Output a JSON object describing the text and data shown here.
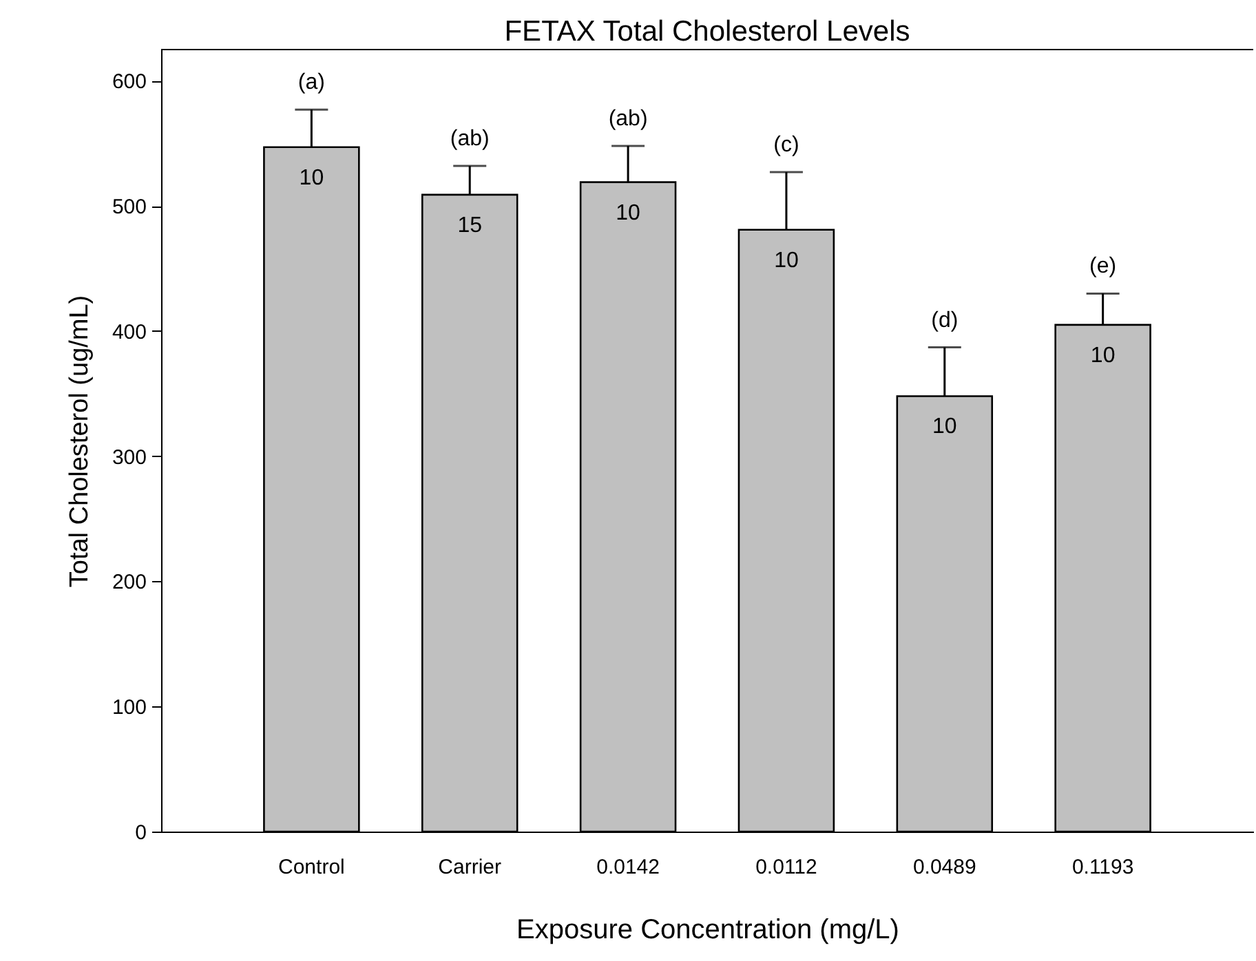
{
  "chart_data": {
    "type": "bar",
    "title": "FETAX Total Cholesterol Levels",
    "xlabel": "Exposure Concentration (mg/L)",
    "ylabel": "Total Cholesterol (ug/mL)",
    "categories": [
      "Control",
      "Carrier",
      "0.0142",
      "0.0112",
      "0.0489",
      "0.1193"
    ],
    "values": [
      547,
      509,
      519,
      481,
      348,
      405
    ],
    "errors": [
      [
        547,
        577
      ],
      [
        509,
        532
      ],
      [
        519,
        548
      ],
      [
        481,
        527
      ],
      [
        348,
        387
      ],
      [
        405,
        430
      ]
    ],
    "color": "#c0c0c0",
    "ylim": [
      0,
      625
    ],
    "yticks": [
      0,
      100,
      200,
      300,
      400,
      500,
      600
    ],
    "annotations": [
      "(a)",
      "(ab)",
      "(ab)",
      "(c)",
      "(d)",
      "(e)",
      "10",
      "15",
      "10",
      "10",
      "10",
      "10"
    ]
  }
}
